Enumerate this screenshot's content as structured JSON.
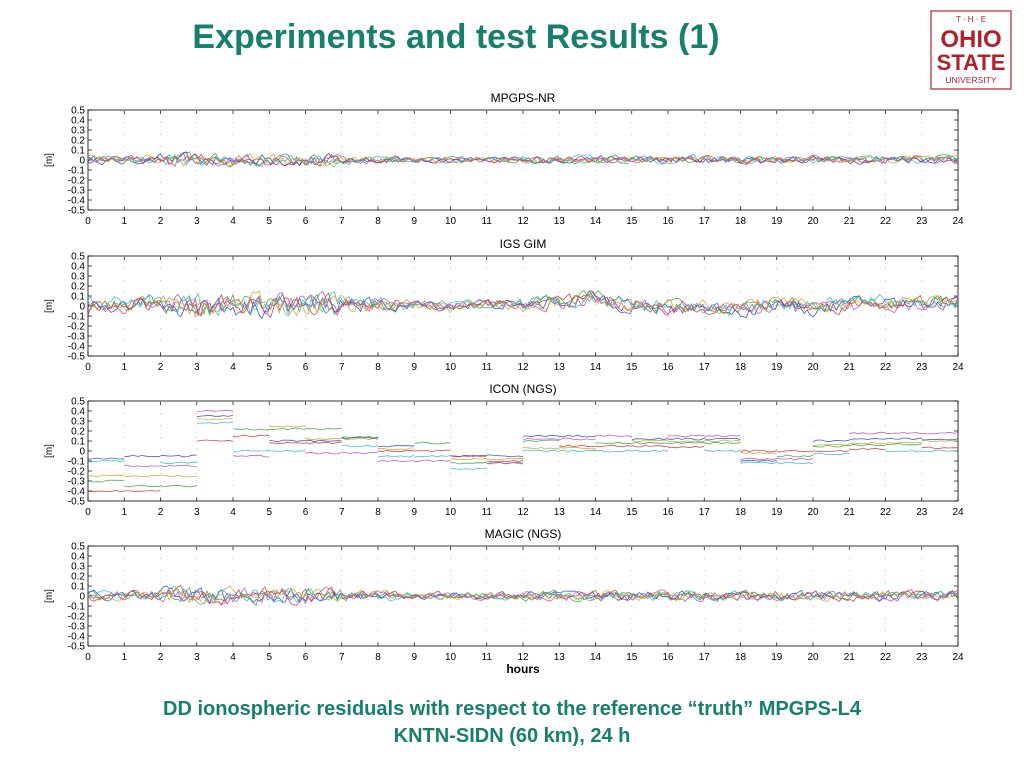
{
  "slide": {
    "title": "Experiments and test Results (1)",
    "caption_line1": "DD ionospheric residuals with respect to the reference “truth” MPGPS-L4",
    "caption_line2": "KNTN-SIDN (60 km), 24 h"
  },
  "logo": {
    "top": "T · H · E",
    "line1": "OHIO",
    "line2": "STATE",
    "line3": "UNIVERSITY",
    "color": "#b0212b"
  },
  "series_colors": [
    "#1f3fbf",
    "#2a9d3a",
    "#d62728",
    "#22b8c8",
    "#c040c0",
    "#c8a020",
    "#404040",
    "#8ca0ff"
  ],
  "chart_data": [
    {
      "type": "line",
      "title": "MPGPS-NR",
      "ylabel": "[m]",
      "xlabel": "",
      "xlim": [
        0,
        24
      ],
      "ylim": [
        -0.5,
        0.5
      ],
      "xticks": [
        "0",
        "1",
        "2",
        "3",
        "4",
        "5",
        "6",
        "7",
        "8",
        "9",
        "10",
        "11",
        "12",
        "13",
        "14",
        "15",
        "16",
        "17",
        "18",
        "19",
        "20",
        "21",
        "22",
        "23",
        "24"
      ],
      "yticks": [
        "0.5",
        "0.4",
        "0.3",
        "0.2",
        "0.1",
        "0",
        "-0.1",
        "-0.2",
        "-0.3",
        "-0.4",
        "-0.5"
      ],
      "style": "noise",
      "amplitude": 0.04,
      "series": [
        {
          "values": [
            0.01,
            -0.02,
            0.02,
            0.0,
            -0.01,
            0.01,
            -0.01,
            0.0,
            0.01,
            -0.01,
            0.0,
            0.01,
            -0.01,
            0.01,
            0.01,
            0.0,
            0.0,
            0.0,
            0.0,
            0.01,
            0.0,
            0.0,
            0.01,
            0.01,
            0.0
          ]
        },
        {
          "values": [
            0.0,
            -0.01,
            0.01,
            0.02,
            -0.02,
            0.0,
            0.0,
            0.01,
            0.0,
            0.0,
            0.01,
            0.0,
            0.0,
            0.0,
            0.01,
            0.0,
            0.01,
            0.0,
            -0.01,
            0.0,
            0.0,
            0.01,
            0.0,
            0.0,
            0.01
          ]
        },
        {
          "values": [
            0.02,
            0.0,
            -0.01,
            0.01,
            0.0,
            0.01,
            -0.02,
            0.0,
            0.0,
            0.01,
            0.0,
            -0.01,
            0.01,
            0.0,
            0.0,
            0.01,
            0.0,
            0.01,
            0.0,
            0.0,
            0.01,
            0.0,
            0.0,
            0.01,
            0.0
          ]
        },
        {
          "values": [
            -0.01,
            0.01,
            0.0,
            -0.02,
            0.01,
            0.0,
            0.01,
            -0.01,
            0.0,
            0.0,
            -0.01,
            0.0,
            0.0,
            0.01,
            0.0,
            0.0,
            0.0,
            0.01,
            0.0,
            0.0,
            0.0,
            0.01,
            0.0,
            0.0,
            0.0
          ]
        },
        {
          "values": [
            0.0,
            0.02,
            -0.01,
            0.0,
            0.01,
            -0.01,
            0.0,
            0.01,
            -0.01,
            0.0,
            0.0,
            0.01,
            0.0,
            0.0,
            0.0,
            0.01,
            0.0,
            0.0,
            0.01,
            0.0,
            0.0,
            0.0,
            0.01,
            0.0,
            0.01
          ]
        },
        {
          "values": [
            0.01,
            0.0,
            0.01,
            -0.01,
            0.0,
            0.02,
            0.0,
            -0.01,
            0.01,
            0.0,
            0.0,
            0.0,
            0.01,
            0.0,
            0.0,
            0.0,
            0.01,
            0.0,
            0.0,
            0.01,
            0.0,
            0.0,
            0.0,
            0.01,
            0.0
          ]
        }
      ]
    },
    {
      "type": "line",
      "title": "IGS GIM",
      "ylabel": "[m]",
      "xlabel": "",
      "xlim": [
        0,
        24
      ],
      "ylim": [
        -0.5,
        0.5
      ],
      "xticks": [
        "0",
        "1",
        "2",
        "3",
        "4",
        "5",
        "6",
        "7",
        "8",
        "9",
        "10",
        "11",
        "12",
        "13",
        "14",
        "15",
        "16",
        "17",
        "18",
        "19",
        "20",
        "21",
        "22",
        "23",
        "24"
      ],
      "yticks": [
        "0.5",
        "0.4",
        "0.3",
        "0.2",
        "0.1",
        "0",
        "-0.1",
        "-0.2",
        "-0.3",
        "-0.4",
        "-0.5"
      ],
      "style": "noise",
      "amplitude": 0.07,
      "series": [
        {
          "values": [
            -0.02,
            0.0,
            0.03,
            0.0,
            -0.02,
            0.01,
            0.0,
            0.03,
            0.0,
            0.01,
            -0.01,
            0.02,
            0.0,
            0.05,
            0.09,
            -0.01,
            -0.04,
            0.0,
            -0.06,
            0.02,
            -0.04,
            0.02,
            0.04,
            0.02,
            0.06
          ]
        },
        {
          "values": [
            0.0,
            0.03,
            0.05,
            -0.03,
            0.0,
            0.02,
            0.03,
            0.0,
            0.02,
            0.0,
            0.02,
            0.01,
            0.04,
            0.06,
            0.1,
            0.02,
            0.0,
            -0.02,
            -0.02,
            0.06,
            0.0,
            0.03,
            0.02,
            0.05,
            0.04
          ]
        },
        {
          "values": [
            -0.04,
            0.02,
            0.0,
            -0.02,
            0.02,
            -0.01,
            0.04,
            0.02,
            0.0,
            0.02,
            0.0,
            0.03,
            0.02,
            0.04,
            0.07,
            0.0,
            -0.03,
            -0.01,
            -0.04,
            0.03,
            -0.02,
            0.01,
            0.03,
            0.03,
            0.05
          ]
        },
        {
          "values": [
            0.02,
            0.04,
            0.02,
            0.0,
            -0.03,
            0.02,
            0.0,
            0.04,
            0.02,
            -0.01,
            0.02,
            0.0,
            0.03,
            0.05,
            0.08,
            0.03,
            0.01,
            0.0,
            -0.03,
            0.04,
            0.01,
            0.04,
            0.05,
            0.04,
            0.03
          ]
        },
        {
          "values": [
            -0.03,
            -0.02,
            0.04,
            0.02,
            0.0,
            0.0,
            0.02,
            0.01,
            0.03,
            0.0,
            0.01,
            0.02,
            0.01,
            0.03,
            0.06,
            0.01,
            -0.02,
            0.02,
            -0.05,
            0.0,
            -0.03,
            0.0,
            0.02,
            0.01,
            0.05
          ]
        },
        {
          "values": [
            0.01,
            0.0,
            0.02,
            -0.04,
            0.02,
            0.03,
            -0.02,
            0.02,
            0.01,
            0.02,
            -0.02,
            0.01,
            0.0,
            0.04,
            0.05,
            -0.02,
            -0.01,
            0.01,
            -0.02,
            0.05,
            -0.01,
            0.02,
            0.03,
            0.04,
            0.06
          ]
        }
      ]
    },
    {
      "type": "line",
      "title": "ICON (NGS)",
      "ylabel": "[m]",
      "xlabel": "",
      "xlim": [
        0,
        24
      ],
      "ylim": [
        -0.5,
        0.5
      ],
      "xticks": [
        "0",
        "1",
        "2",
        "3",
        "4",
        "5",
        "6",
        "7",
        "8",
        "9",
        "10",
        "11",
        "12",
        "13",
        "14",
        "15",
        "16",
        "17",
        "18",
        "19",
        "20",
        "21",
        "22",
        "23",
        "24"
      ],
      "yticks": [
        "0.5",
        "0.4",
        "0.3",
        "0.2",
        "0.1",
        "0",
        "-0.1",
        "-0.2",
        "-0.3",
        "-0.4",
        "-0.5"
      ],
      "style": "segments",
      "series": [
        {
          "values": [
            -0.08,
            -0.05,
            -0.05,
            0.35,
            0.12,
            0.1,
            0.1,
            0.13,
            0.05,
            0.05,
            -0.05,
            -0.05,
            0.15,
            0.15,
            0.12,
            0.12,
            0.12,
            0.12,
            -0.1,
            -0.06,
            0.1,
            0.12,
            0.12,
            0.12,
            0.12
          ]
        },
        {
          "values": [
            -0.3,
            -0.35,
            -0.35,
            0.22,
            0.22,
            0.22,
            0.22,
            0.14,
            0.08,
            0.08,
            -0.12,
            -0.12,
            0.1,
            0.1,
            0.08,
            0.08,
            0.08,
            0.08,
            -0.05,
            -0.05,
            0.05,
            0.06,
            0.07,
            0.07,
            0.07
          ]
        },
        {
          "values": [
            -0.4,
            -0.4,
            -0.4,
            0.1,
            0.15,
            0.08,
            0.08,
            0.08,
            0.0,
            0.0,
            -0.05,
            -0.1,
            0.05,
            0.05,
            0.05,
            0.05,
            0.04,
            0.04,
            0.0,
            0.0,
            0.0,
            0.02,
            0.03,
            0.03,
            0.03
          ]
        },
        {
          "values": [
            -0.1,
            -0.12,
            -0.12,
            0.28,
            0.0,
            0.0,
            0.05,
            0.05,
            -0.05,
            -0.05,
            -0.18,
            -0.18,
            0.0,
            0.0,
            0.0,
            0.0,
            0.0,
            0.0,
            -0.12,
            -0.12,
            -0.03,
            -0.02,
            0.0,
            0.0,
            0.0
          ]
        },
        {
          "values": [
            -0.15,
            -0.15,
            -0.15,
            0.4,
            -0.05,
            -0.05,
            -0.02,
            -0.02,
            -0.1,
            -0.1,
            -0.12,
            -0.12,
            0.12,
            0.12,
            0.15,
            0.15,
            0.15,
            0.15,
            -0.08,
            -0.08,
            0.15,
            0.18,
            0.18,
            0.18,
            0.2
          ]
        },
        {
          "values": [
            -0.25,
            -0.25,
            -0.25,
            0.32,
            0.25,
            0.25,
            0.12,
            0.12,
            0.02,
            0.02,
            -0.08,
            -0.08,
            0.03,
            0.03,
            0.1,
            0.1,
            0.1,
            0.1,
            -0.02,
            -0.02,
            0.06,
            0.08,
            0.08,
            0.1,
            0.1
          ]
        }
      ]
    },
    {
      "type": "line",
      "title": "MAGIC (NGS)",
      "ylabel": "[m]",
      "xlabel": "hours",
      "xlim": [
        0,
        24
      ],
      "ylim": [
        -0.5,
        0.5
      ],
      "xticks": [
        "0",
        "1",
        "2",
        "3",
        "4",
        "5",
        "6",
        "7",
        "8",
        "9",
        "10",
        "11",
        "12",
        "13",
        "14",
        "15",
        "16",
        "17",
        "18",
        "19",
        "20",
        "21",
        "22",
        "23",
        "24"
      ],
      "yticks": [
        "0.5",
        "0.4",
        "0.3",
        "0.2",
        "0.1",
        "0",
        "-0.1",
        "-0.2",
        "-0.3",
        "-0.4",
        "-0.5"
      ],
      "style": "noise",
      "amplitude": 0.05,
      "series": [
        {
          "values": [
            0.0,
            0.01,
            0.02,
            -0.01,
            0.0,
            0.01,
            0.0,
            -0.01,
            0.01,
            0.0,
            0.0,
            0.0,
            0.01,
            0.01,
            0.0,
            0.0,
            0.01,
            0.0,
            -0.01,
            0.0,
            0.01,
            0.0,
            0.0,
            0.01,
            0.0
          ]
        },
        {
          "values": [
            0.01,
            0.02,
            -0.01,
            0.02,
            0.0,
            0.0,
            0.02,
            0.0,
            0.0,
            0.01,
            0.0,
            0.01,
            0.0,
            0.0,
            0.01,
            0.0,
            0.0,
            0.01,
            0.0,
            0.0,
            0.0,
            0.01,
            0.0,
            0.0,
            0.01
          ]
        },
        {
          "values": [
            -0.01,
            0.0,
            0.01,
            0.0,
            -0.02,
            0.01,
            -0.01,
            0.01,
            0.0,
            0.0,
            0.01,
            0.0,
            -0.01,
            0.0,
            0.0,
            0.01,
            0.0,
            0.0,
            0.0,
            0.01,
            0.0,
            0.0,
            0.01,
            0.0,
            0.0
          ]
        },
        {
          "values": [
            0.0,
            -0.01,
            0.0,
            0.01,
            0.01,
            -0.01,
            0.01,
            0.0,
            -0.01,
            0.0,
            0.0,
            -0.01,
            0.0,
            0.01,
            0.0,
            0.0,
            0.0,
            0.0,
            0.01,
            0.0,
            0.0,
            0.0,
            0.0,
            0.01,
            0.01
          ]
        },
        {
          "values": [
            0.02,
            0.0,
            0.0,
            0.02,
            0.0,
            0.0,
            0.0,
            0.02,
            0.0,
            -0.01,
            0.0,
            0.0,
            0.01,
            0.0,
            0.0,
            0.0,
            0.01,
            0.0,
            0.0,
            0.0,
            0.01,
            0.0,
            0.0,
            0.0,
            0.0
          ]
        },
        {
          "values": [
            0.0,
            0.0,
            0.01,
            0.0,
            0.01,
            0.0,
            0.01,
            0.0,
            0.01,
            0.0,
            -0.01,
            0.01,
            0.0,
            0.0,
            0.01,
            0.0,
            0.0,
            0.0,
            0.0,
            0.0,
            0.0,
            0.01,
            0.0,
            0.0,
            0.0
          ]
        }
      ]
    }
  ]
}
